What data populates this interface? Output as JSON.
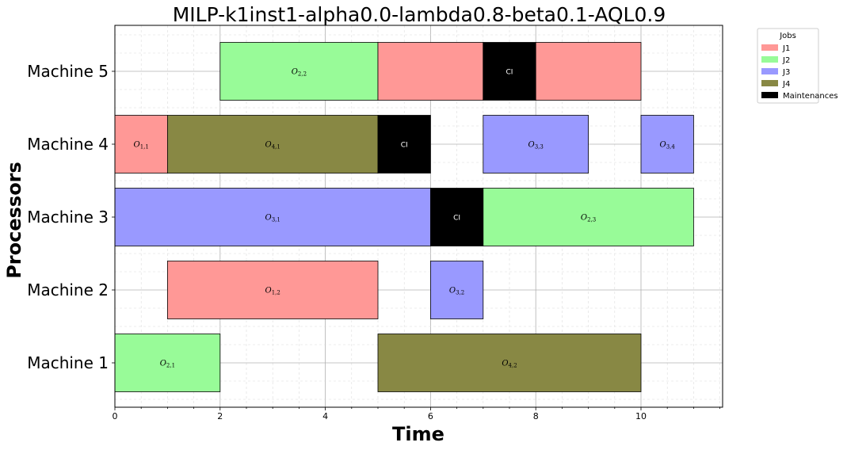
{
  "chart_data": {
    "type": "gantt",
    "title": "MILP-k1inst1-alpha0.0-lambda0.8-beta0.1-AQL0.9",
    "xlabel": "Time",
    "ylabel": "Processors",
    "xlim": [
      0,
      11.5
    ],
    "xticks": [
      0,
      2,
      4,
      6,
      8,
      10
    ],
    "machines": [
      "Machine 1",
      "Machine 2",
      "Machine 3",
      "Machine 4",
      "Machine 5"
    ],
    "grid": true,
    "legend": {
      "title": "Jobs",
      "placement": "outside-top-right",
      "entries": [
        {
          "key": "J1",
          "label": "J1"
        },
        {
          "key": "J2",
          "label": "J2"
        },
        {
          "key": "J3",
          "label": "J3"
        },
        {
          "key": "J4",
          "label": "J4"
        },
        {
          "key": "M",
          "label": "Maintenances"
        }
      ]
    },
    "colors": {
      "J1": "#ff9896",
      "J2": "#98fb98",
      "J3": "#9999ff",
      "J4": "#888844",
      "M": "#000000"
    },
    "tasks": [
      {
        "machine": 1,
        "job": "J2",
        "start": 0,
        "end": 2,
        "label": "O",
        "sub": "2,1"
      },
      {
        "machine": 1,
        "job": "J4",
        "start": 5,
        "end": 10,
        "label": "O",
        "sub": "4,2"
      },
      {
        "machine": 2,
        "job": "J1",
        "start": 1,
        "end": 5,
        "label": "O",
        "sub": "1,2"
      },
      {
        "machine": 2,
        "job": "J3",
        "start": 6,
        "end": 7,
        "label": "O",
        "sub": "3,2"
      },
      {
        "machine": 3,
        "job": "J3",
        "start": 0,
        "end": 6,
        "label": "O",
        "sub": "3,1"
      },
      {
        "machine": 3,
        "job": "M",
        "start": 6,
        "end": 7,
        "label": "CI",
        "sub": ""
      },
      {
        "machine": 3,
        "job": "J2",
        "start": 7,
        "end": 11,
        "label": "O",
        "sub": "2,3"
      },
      {
        "machine": 4,
        "job": "J1",
        "start": 0,
        "end": 1,
        "label": "O",
        "sub": "1,1"
      },
      {
        "machine": 4,
        "job": "J4",
        "start": 1,
        "end": 5,
        "label": "O",
        "sub": "4,1"
      },
      {
        "machine": 4,
        "job": "M",
        "start": 5,
        "end": 6,
        "label": "CI",
        "sub": ""
      },
      {
        "machine": 4,
        "job": "J3",
        "start": 7,
        "end": 9,
        "label": "O",
        "sub": "3,3"
      },
      {
        "machine": 4,
        "job": "J3",
        "start": 10,
        "end": 11,
        "label": "O",
        "sub": "3,4"
      },
      {
        "machine": 5,
        "job": "J2",
        "start": 2,
        "end": 5,
        "label": "O",
        "sub": "2,2"
      },
      {
        "machine": 5,
        "job": "J1",
        "start": 5,
        "end": 7,
        "label": "",
        "sub": ""
      },
      {
        "machine": 5,
        "job": "M",
        "start": 7,
        "end": 8,
        "label": "CI",
        "sub": ""
      },
      {
        "machine": 5,
        "job": "J1",
        "start": 8,
        "end": 10,
        "label": "",
        "sub": ""
      }
    ]
  }
}
